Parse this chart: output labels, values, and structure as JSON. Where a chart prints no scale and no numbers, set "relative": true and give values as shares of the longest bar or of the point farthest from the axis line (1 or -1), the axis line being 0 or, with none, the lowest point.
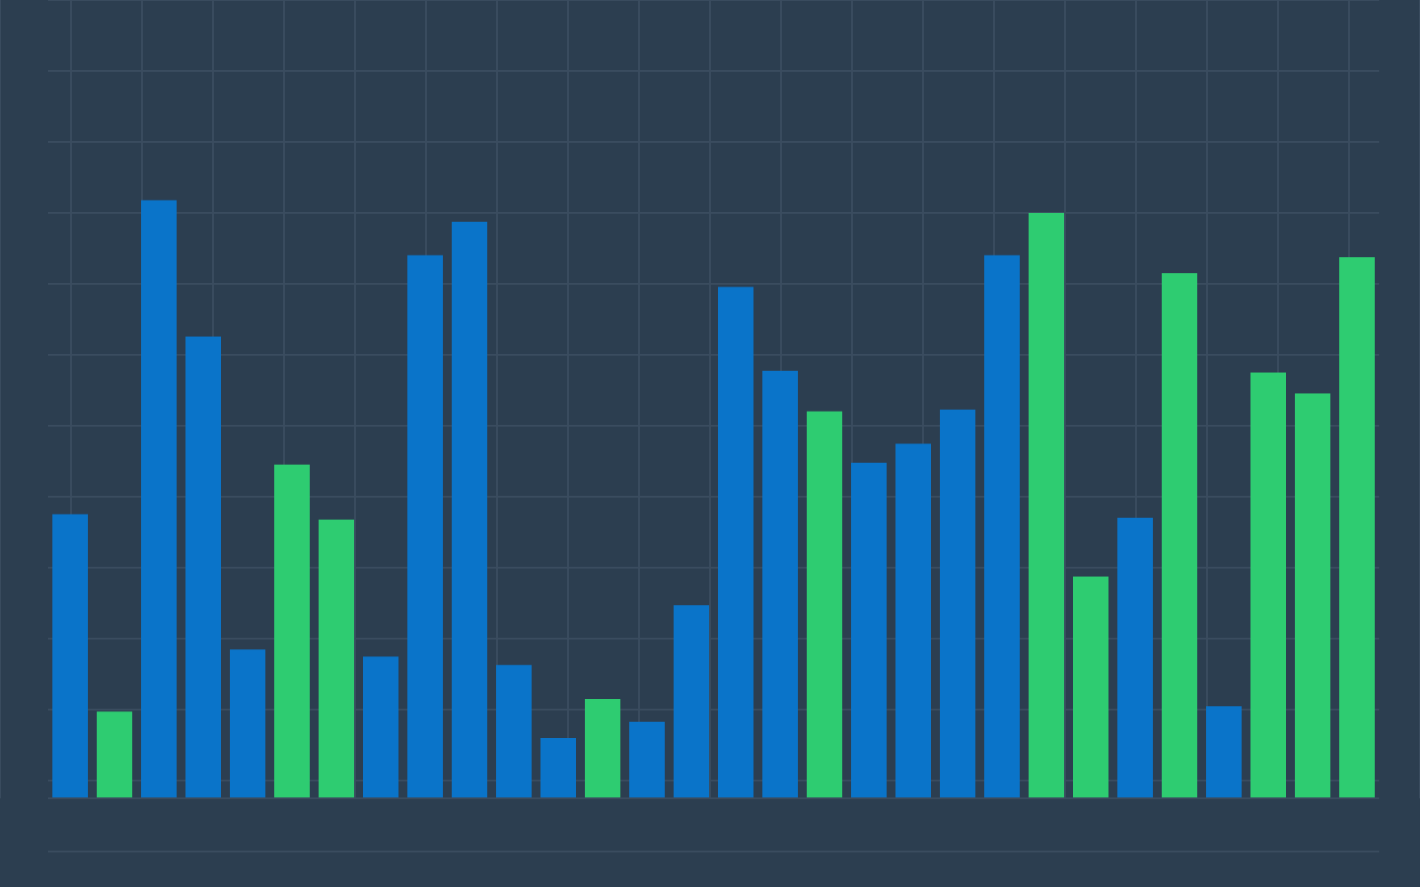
{
  "chart_data": {
    "type": "bar",
    "relative": true,
    "grid": true,
    "categories": [
      null,
      null,
      null,
      null,
      null,
      null,
      null,
      null,
      null,
      null,
      null,
      null,
      null,
      null,
      null,
      null,
      null,
      null,
      null,
      null,
      null,
      null,
      null,
      null,
      null,
      null,
      null,
      null,
      null,
      null
    ],
    "values": [
      0.475,
      0.145,
      1,
      0.772,
      0.249,
      0.558,
      0.466,
      0.237,
      0.908,
      0.964,
      0.223,
      0.101,
      0.166,
      0.128,
      0.323,
      0.855,
      0.715,
      0.647,
      0.561,
      0.593,
      0.65,
      0.908,
      0.979,
      0.371,
      0.469,
      0.878,
      0.154,
      0.712,
      0.677,
      0.905
    ],
    "colors": [
      "#0a74c9",
      "#2ecc71",
      "#0a74c9",
      "#0a74c9",
      "#0a74c9",
      "#2ecc71",
      "#2ecc71",
      "#0a74c9",
      "#0a74c9",
      "#0a74c9",
      "#0a74c9",
      "#0a74c9",
      "#2ecc71",
      "#0a74c9",
      "#0a74c9",
      "#0a74c9",
      "#0a74c9",
      "#2ecc71",
      "#0a74c9",
      "#0a74c9",
      "#0a74c9",
      "#0a74c9",
      "#2ecc71",
      "#2ecc71",
      "#0a74c9",
      "#2ecc71",
      "#0a74c9",
      "#2ecc71",
      "#2ecc71",
      "#2ecc71"
    ]
  }
}
